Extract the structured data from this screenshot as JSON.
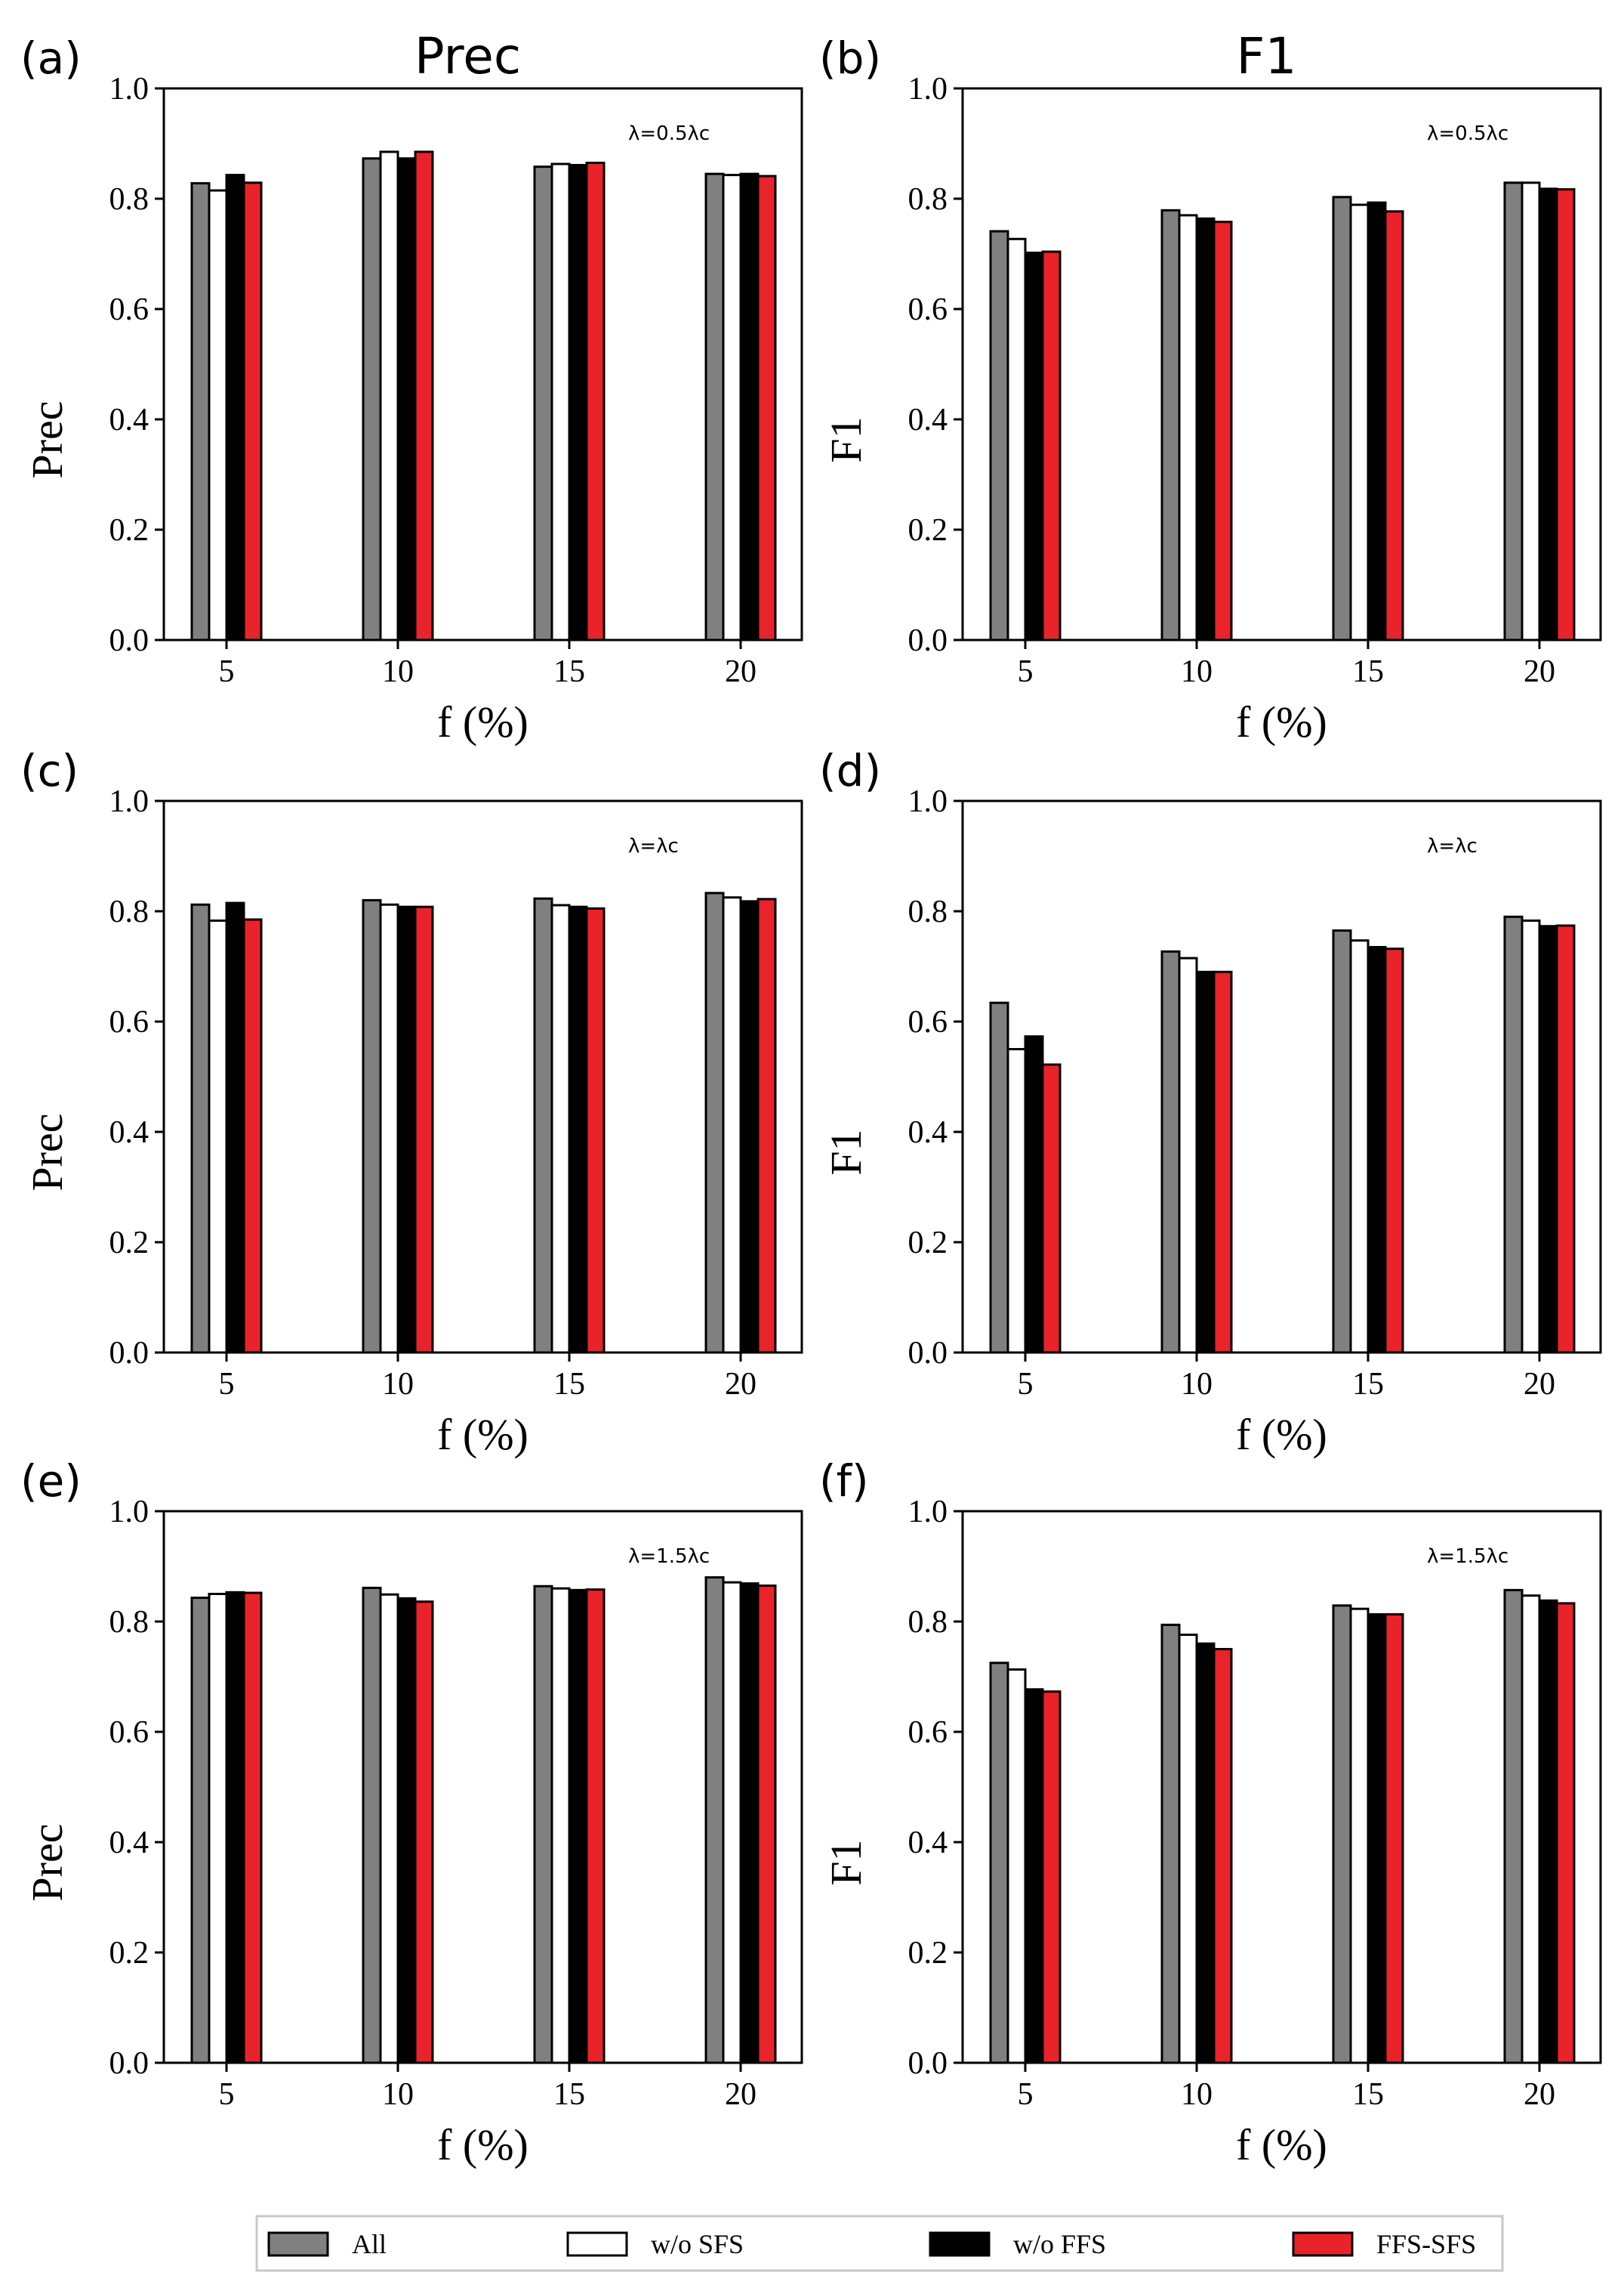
{
  "figure": {
    "columns": [
      "Prec",
      "F1"
    ],
    "legend": [
      {
        "label": "All",
        "color": "#808080"
      },
      {
        "label": "w/o SFS",
        "color": "#ffffff"
      },
      {
        "label": "w/o FFS",
        "color": "#000000"
      },
      {
        "label": "FFS-SFS",
        "color": "#e8232a"
      }
    ]
  },
  "chart_data": [
    {
      "type": "bar",
      "panel": "(a)",
      "title": "Prec",
      "annotation": "λ=0.5λc",
      "xlabel": "f (%)",
      "ylabel": "Prec",
      "ylim": [
        0,
        1.0
      ],
      "yticks": [
        "0.0",
        "0.2",
        "0.4",
        "0.6",
        "0.8",
        "1.0"
      ],
      "categories": [
        "5",
        "10",
        "15",
        "20"
      ],
      "series": [
        {
          "name": "All",
          "values": [
            0.828,
            0.873,
            0.858,
            0.845
          ]
        },
        {
          "name": "w/o SFS",
          "values": [
            0.815,
            0.885,
            0.863,
            0.843
          ]
        },
        {
          "name": "w/o FFS",
          "values": [
            0.843,
            0.873,
            0.861,
            0.845
          ]
        },
        {
          "name": "FFS-SFS",
          "values": [
            0.829,
            0.885,
            0.865,
            0.841
          ]
        }
      ]
    },
    {
      "type": "bar",
      "panel": "(b)",
      "title": "F1",
      "annotation": "λ=0.5λc",
      "xlabel": "f (%)",
      "ylabel": "F1",
      "ylim": [
        0,
        1.0
      ],
      "yticks": [
        "0.0",
        "0.2",
        "0.4",
        "0.6",
        "0.8",
        "1.0"
      ],
      "categories": [
        "5",
        "10",
        "15",
        "20"
      ],
      "series": [
        {
          "name": "All",
          "values": [
            0.741,
            0.779,
            0.803,
            0.829
          ]
        },
        {
          "name": "w/o SFS",
          "values": [
            0.727,
            0.77,
            0.789,
            0.829
          ]
        },
        {
          "name": "w/o FFS",
          "values": [
            0.702,
            0.764,
            0.793,
            0.818
          ]
        },
        {
          "name": "FFS-SFS",
          "values": [
            0.704,
            0.758,
            0.777,
            0.817
          ]
        }
      ]
    },
    {
      "type": "bar",
      "panel": "(c)",
      "title": "",
      "annotation": "λ=λc",
      "xlabel": "f (%)",
      "ylabel": "Prec",
      "ylim": [
        0,
        1.0
      ],
      "yticks": [
        "0.0",
        "0.2",
        "0.4",
        "0.6",
        "0.8",
        "1.0"
      ],
      "categories": [
        "5",
        "10",
        "15",
        "20"
      ],
      "series": [
        {
          "name": "All",
          "values": [
            0.812,
            0.82,
            0.823,
            0.833
          ]
        },
        {
          "name": "w/o SFS",
          "values": [
            0.783,
            0.812,
            0.811,
            0.825
          ]
        },
        {
          "name": "w/o FFS",
          "values": [
            0.815,
            0.808,
            0.808,
            0.818
          ]
        },
        {
          "name": "FFS-SFS",
          "values": [
            0.785,
            0.808,
            0.805,
            0.822
          ]
        }
      ]
    },
    {
      "type": "bar",
      "panel": "(d)",
      "title": "",
      "annotation": "λ=λc",
      "xlabel": "f (%)",
      "ylabel": "F1",
      "ylim": [
        0,
        1.0
      ],
      "yticks": [
        "0.0",
        "0.2",
        "0.4",
        "0.6",
        "0.8",
        "1.0"
      ],
      "categories": [
        "5",
        "10",
        "15",
        "20"
      ],
      "series": [
        {
          "name": "All",
          "values": [
            0.634,
            0.727,
            0.765,
            0.79
          ]
        },
        {
          "name": "w/o SFS",
          "values": [
            0.55,
            0.715,
            0.747,
            0.783
          ]
        },
        {
          "name": "w/o FFS",
          "values": [
            0.573,
            0.69,
            0.735,
            0.773
          ]
        },
        {
          "name": "FFS-SFS",
          "values": [
            0.522,
            0.69,
            0.732,
            0.774
          ]
        }
      ]
    },
    {
      "type": "bar",
      "panel": "(e)",
      "title": "",
      "annotation": "λ=1.5λc",
      "xlabel": "f (%)",
      "ylabel": "Prec",
      "ylim": [
        0,
        1.0
      ],
      "yticks": [
        "0.0",
        "0.2",
        "0.4",
        "0.6",
        "0.8",
        "1.0"
      ],
      "categories": [
        "5",
        "10",
        "15",
        "20"
      ],
      "series": [
        {
          "name": "All",
          "values": [
            0.843,
            0.861,
            0.864,
            0.88
          ]
        },
        {
          "name": "w/o SFS",
          "values": [
            0.85,
            0.849,
            0.86,
            0.871
          ]
        },
        {
          "name": "w/o FFS",
          "values": [
            0.853,
            0.842,
            0.857,
            0.869
          ]
        },
        {
          "name": "FFS-SFS",
          "values": [
            0.852,
            0.836,
            0.858,
            0.865
          ]
        }
      ]
    },
    {
      "type": "bar",
      "panel": "(f)",
      "title": "",
      "annotation": "λ=1.5λc",
      "xlabel": "f (%)",
      "ylabel": "F1",
      "ylim": [
        0,
        1.0
      ],
      "yticks": [
        "0.0",
        "0.2",
        "0.4",
        "0.6",
        "0.8",
        "1.0"
      ],
      "categories": [
        "5",
        "10",
        "15",
        "20"
      ],
      "series": [
        {
          "name": "All",
          "values": [
            0.725,
            0.794,
            0.829,
            0.857
          ]
        },
        {
          "name": "w/o SFS",
          "values": [
            0.713,
            0.776,
            0.823,
            0.847
          ]
        },
        {
          "name": "w/o FFS",
          "values": [
            0.677,
            0.76,
            0.813,
            0.838
          ]
        },
        {
          "name": "FFS-SFS",
          "values": [
            0.673,
            0.75,
            0.813,
            0.833
          ]
        }
      ]
    }
  ]
}
